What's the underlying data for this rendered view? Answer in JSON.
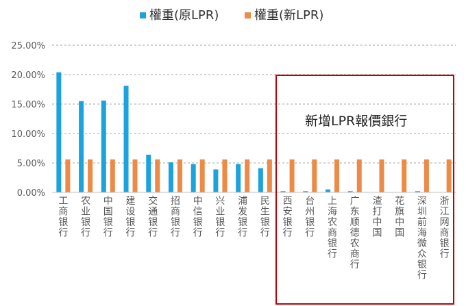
{
  "chart_data": {
    "type": "bar",
    "legend_position": "top",
    "grid": true,
    "ylim": [
      0,
      25
    ],
    "yticks": [
      "0.00%",
      "5.00%",
      "10.00%",
      "15.00%",
      "20.00%",
      "25.00%"
    ],
    "categories": [
      "工商银行",
      "农业银行",
      "中国银行",
      "建设银行",
      "交通银行",
      "招商银行",
      "中信银行",
      "兴业银行",
      "浦发银行",
      "民生银行",
      "西安银行",
      "台州银行",
      "上海农商银行",
      "广东顺德农商行",
      "渣打中国",
      "花旗中国",
      "深圳前海微众银行",
      "浙江网商银行"
    ],
    "series": [
      {
        "name": "權重(原LPR)",
        "color": "#1BA3DE",
        "values": [
          20.4,
          15.5,
          15.6,
          18.1,
          6.4,
          5.1,
          4.8,
          3.9,
          4.8,
          4.1,
          0.2,
          0.2,
          0.5,
          0.2,
          0,
          0,
          0.2,
          0
        ]
      },
      {
        "name": "權重(新LPR)",
        "color": "#ED8A45",
        "values": [
          5.6,
          5.6,
          5.6,
          5.6,
          5.6,
          5.6,
          5.6,
          5.6,
          5.6,
          5.6,
          5.6,
          5.6,
          5.6,
          5.6,
          5.6,
          5.6,
          5.6,
          5.6
        ]
      }
    ],
    "annotation": {
      "text": "新增LPR報價銀行",
      "border_color": "#C00000",
      "from_category": 10
    }
  }
}
